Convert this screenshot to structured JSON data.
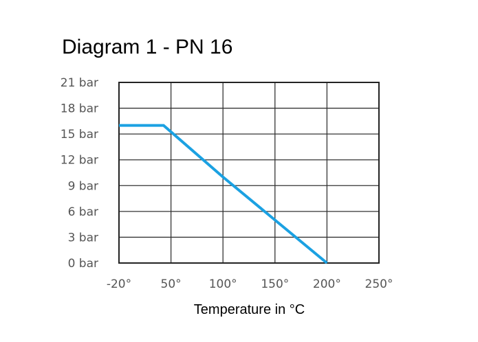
{
  "chart_data": {
    "type": "line",
    "title": "Diagram 1 - PN 16",
    "xlabel": "Temperature in °C",
    "ylabel": "",
    "x_ticks": [
      -20,
      50,
      100,
      150,
      200,
      250
    ],
    "x_tick_labels": [
      "-20°",
      "50°",
      "100°",
      "150°",
      "200°",
      "250°"
    ],
    "y_ticks": [
      0,
      3,
      6,
      9,
      12,
      15,
      18,
      21
    ],
    "y_tick_labels": [
      "0 bar",
      "3 bar",
      "6 bar",
      "9 bar",
      "12 bar",
      "15 bar",
      "18 bar",
      "21 bar"
    ],
    "ylim": [
      0,
      21
    ],
    "xlim": [
      -20,
      250
    ],
    "grid": true,
    "series": [
      {
        "x": [
          -20,
          40,
          100,
          150,
          200
        ],
        "y": [
          16,
          16,
          10,
          5,
          0
        ],
        "color": "#1ba1e2"
      }
    ]
  }
}
